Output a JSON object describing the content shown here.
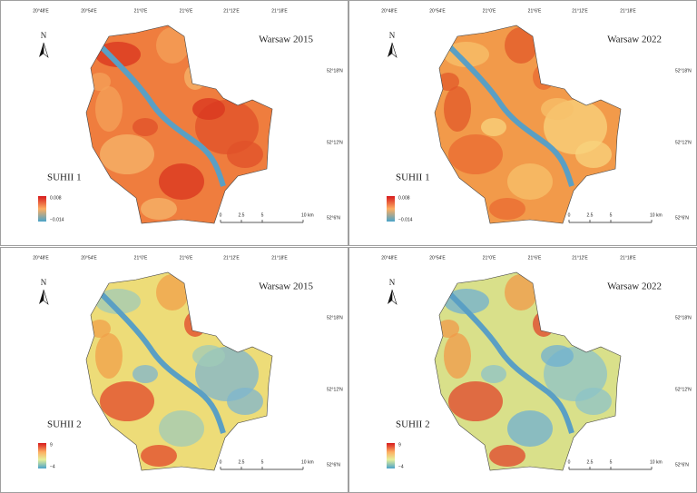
{
  "panels": [
    {
      "title": "Warsaw 2015",
      "index": "SUHII 1",
      "legend_max": "0.008",
      "legend_min": "−0.014",
      "style": "hot",
      "north": "N",
      "lon_labels": [
        "20°48'E",
        "20°54'E",
        "21°0'E",
        "21°6'E",
        "21°12'E",
        "21°18'E"
      ],
      "lat_labels": [
        "52°18'N",
        "52°12'N",
        "52°6'N"
      ],
      "scale": [
        "0",
        "2.5",
        "5",
        "10 km"
      ]
    },
    {
      "title": "Warsaw 2022",
      "index": "SUHII 1",
      "legend_max": "0.008",
      "legend_min": "−0.014",
      "style": "warm",
      "north": "N",
      "lon_labels": [
        "20°48'E",
        "20°54'E",
        "21°0'E",
        "21°6'E",
        "21°12'E",
        "21°18'E"
      ],
      "lat_labels": [
        "52°18'N",
        "52°12'N",
        "52°6'N"
      ],
      "scale": [
        "0",
        "2.5",
        "5",
        "10 km"
      ]
    },
    {
      "title": "Warsaw 2015",
      "index": "SUHII 2",
      "legend_max": "9",
      "legend_min": "−4",
      "style": "mix",
      "north": "N",
      "lon_labels": [
        "20°48'E",
        "20°54'E",
        "21°0'E",
        "21°6'E",
        "21°12'E",
        "21°18'E"
      ],
      "lat_labels": [
        "52°18'N",
        "52°12'N",
        "52°6'N"
      ],
      "scale": [
        "0",
        "2.5",
        "5",
        "10 km"
      ]
    },
    {
      "title": "Warsaw 2022",
      "index": "SUHII 2",
      "legend_max": "9",
      "legend_min": "−4",
      "style": "cool",
      "north": "N",
      "lon_labels": [
        "20°48'E",
        "20°54'E",
        "21°0'E",
        "21°6'E",
        "21°12'E",
        "21°18'E"
      ],
      "lat_labels": [
        "52°18'N",
        "52°12'N",
        "52°6'N"
      ],
      "scale": [
        "0",
        "2.5",
        "5",
        "10 km"
      ]
    }
  ]
}
